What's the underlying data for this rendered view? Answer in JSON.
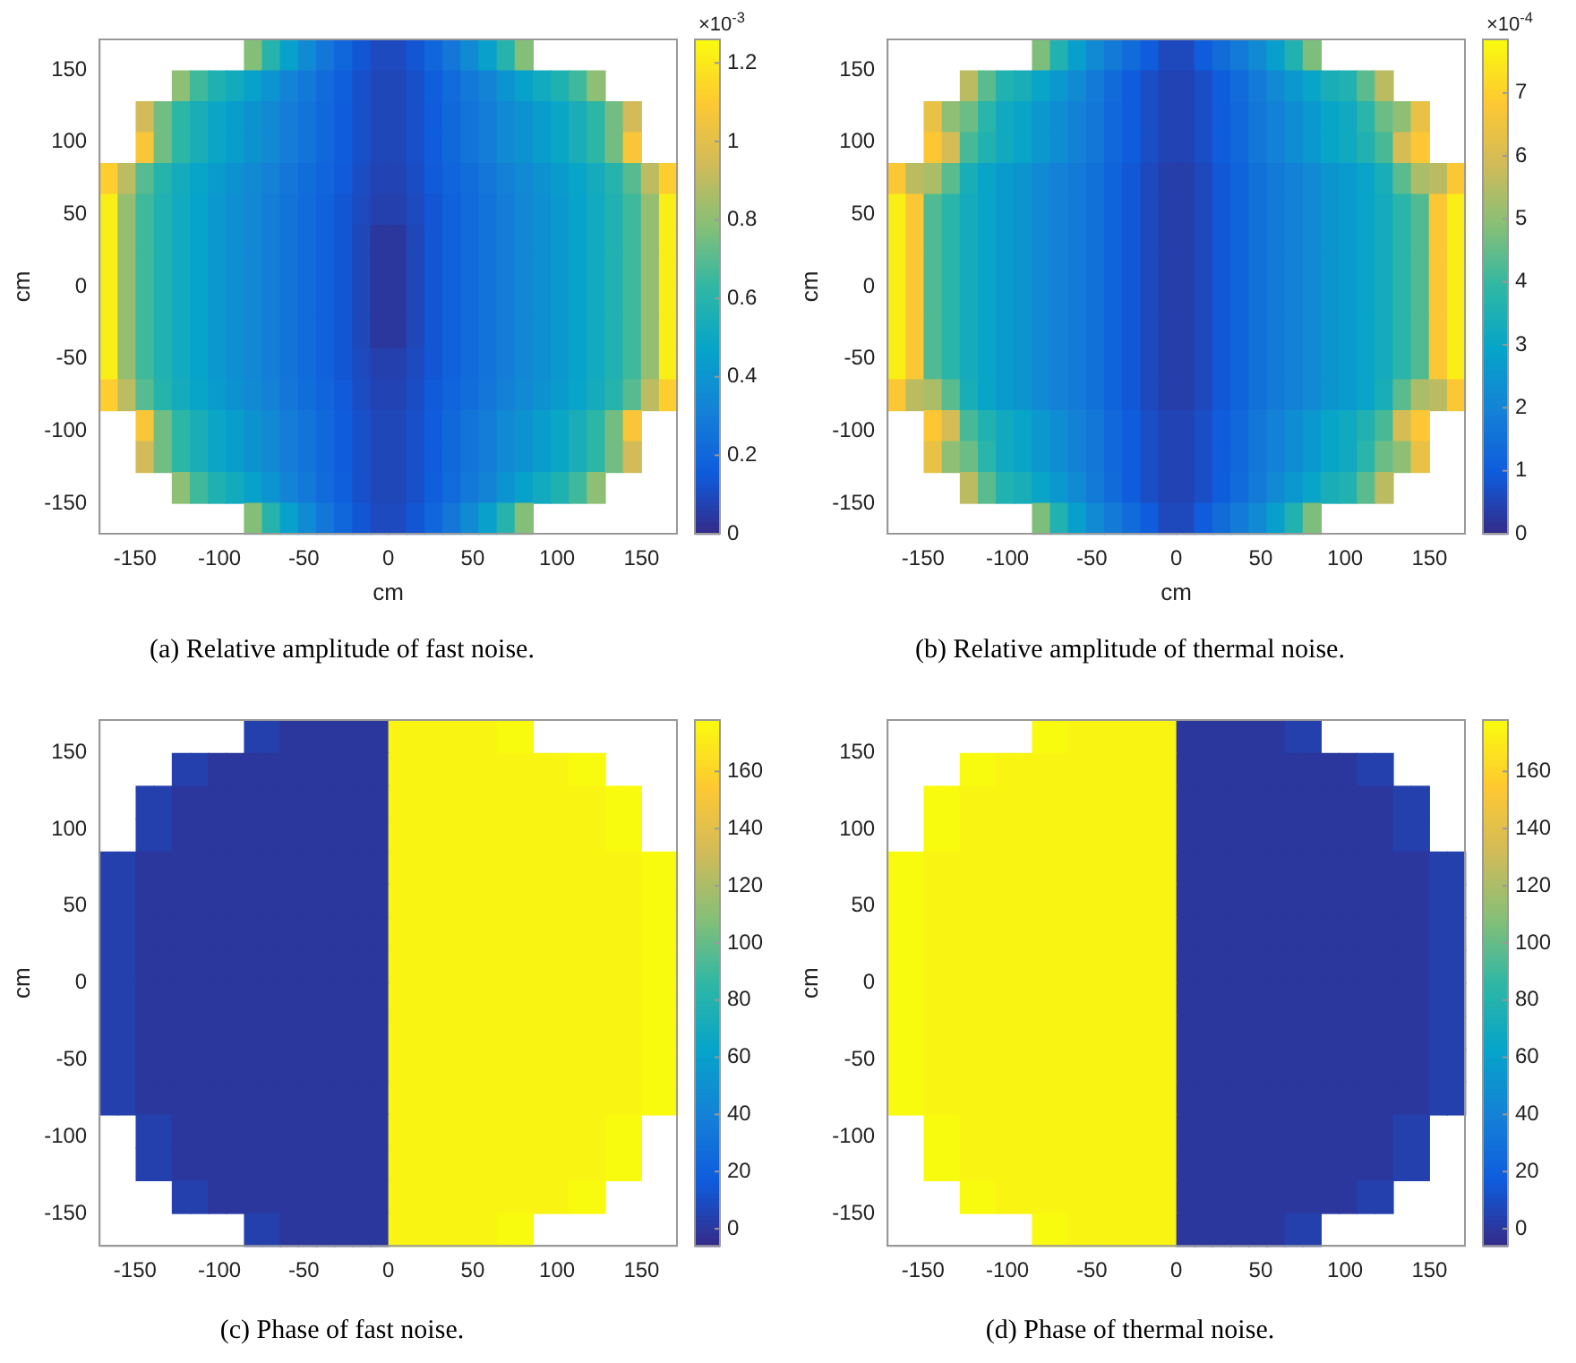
{
  "chart_data": [
    {
      "type": "heatmap",
      "title": "(a) Relative amplitude of fast noise.",
      "xlabel": "cm",
      "ylabel": "cm",
      "annotations": [
        "×10$^{-3}$"
      ],
      "x": [
        -165.7,
        -155.0,
        -144.3,
        -133.6,
        -122.9,
        -112.2,
        -101.5,
        -90.8,
        -80.2,
        -69.5,
        -58.8,
        -48.1,
        -37.4,
        -26.7,
        -16.0,
        -5.3,
        5.3,
        16.0,
        26.7,
        37.4,
        48.1,
        58.8,
        69.5,
        80.2,
        90.8,
        101.5,
        112.2,
        122.9,
        133.6,
        144.3,
        155.0,
        165.7
      ],
      "y": [
        160.3,
        138.9,
        117.6,
        96.2,
        74.8,
        53.4,
        32.1,
        10.7,
        -10.7,
        -32.1,
        -53.4,
        -74.8,
        -96.2,
        -117.6,
        -138.9,
        -160.3
      ],
      "xlim": [
        -171,
        171
      ],
      "ylim": [
        -171,
        171
      ],
      "xticks": [
        -150,
        -100,
        -50,
        0,
        50,
        100,
        150
      ],
      "yticks": [
        -150,
        -100,
        -50,
        0,
        50,
        100,
        150
      ],
      "clim": [
        0,
        1.26
      ],
      "cticks": [
        0,
        0.2,
        0.4,
        0.6,
        0.8,
        1,
        1.2
      ],
      "cells": [
        [
          null,
          null,
          null,
          null,
          null,
          null,
          null,
          null,
          0.78,
          0.6,
          0.46,
          0.36,
          0.27,
          0.2,
          0.14,
          0.1,
          0.1,
          0.14,
          0.2,
          0.27,
          0.36,
          0.46,
          0.6,
          0.78,
          null,
          null,
          null,
          null,
          null,
          null,
          null,
          null
        ],
        [
          null,
          null,
          null,
          null,
          0.8,
          0.66,
          0.57,
          0.52,
          0.46,
          0.4,
          0.33,
          0.28,
          0.22,
          0.17,
          0.12,
          0.09,
          0.09,
          0.12,
          0.17,
          0.22,
          0.28,
          0.33,
          0.4,
          0.46,
          0.52,
          0.57,
          0.66,
          0.8,
          null,
          null,
          null,
          null
        ],
        [
          null,
          null,
          0.95,
          0.75,
          0.62,
          0.55,
          0.49,
          0.44,
          0.39,
          0.35,
          0.3,
          0.26,
          0.21,
          0.16,
          0.12,
          0.09,
          0.09,
          0.12,
          0.16,
          0.21,
          0.26,
          0.3,
          0.35,
          0.39,
          0.44,
          0.49,
          0.55,
          0.62,
          0.75,
          0.95,
          null,
          null
        ],
        [
          null,
          null,
          1.08,
          0.75,
          0.62,
          0.55,
          0.49,
          0.44,
          0.39,
          0.35,
          0.3,
          0.26,
          0.21,
          0.16,
          0.12,
          0.09,
          0.09,
          0.12,
          0.16,
          0.21,
          0.26,
          0.3,
          0.35,
          0.39,
          0.44,
          0.49,
          0.55,
          0.62,
          0.75,
          1.08,
          null,
          null
        ],
        [
          1.12,
          0.9,
          0.7,
          0.6,
          0.53,
          0.48,
          0.43,
          0.39,
          0.35,
          0.31,
          0.27,
          0.23,
          0.19,
          0.15,
          0.11,
          0.08,
          0.08,
          0.11,
          0.15,
          0.19,
          0.23,
          0.27,
          0.31,
          0.35,
          0.39,
          0.43,
          0.48,
          0.53,
          0.6,
          0.7,
          0.9,
          1.12
        ],
        [
          1.22,
          0.82,
          0.66,
          0.58,
          0.52,
          0.47,
          0.42,
          0.38,
          0.34,
          0.3,
          0.26,
          0.22,
          0.18,
          0.14,
          0.1,
          0.07,
          0.07,
          0.1,
          0.14,
          0.18,
          0.22,
          0.26,
          0.3,
          0.34,
          0.38,
          0.42,
          0.47,
          0.52,
          0.58,
          0.66,
          0.82,
          1.22
        ],
        [
          1.22,
          0.82,
          0.66,
          0.58,
          0.52,
          0.47,
          0.42,
          0.38,
          0.34,
          0.3,
          0.26,
          0.22,
          0.18,
          0.14,
          0.09,
          0.04,
          0.04,
          0.09,
          0.14,
          0.18,
          0.22,
          0.26,
          0.3,
          0.34,
          0.38,
          0.42,
          0.47,
          0.52,
          0.58,
          0.66,
          0.82,
          1.22
        ],
        [
          1.22,
          0.82,
          0.66,
          0.58,
          0.52,
          0.47,
          0.42,
          0.38,
          0.34,
          0.3,
          0.26,
          0.22,
          0.18,
          0.14,
          0.09,
          0.04,
          0.04,
          0.09,
          0.14,
          0.18,
          0.22,
          0.26,
          0.3,
          0.34,
          0.38,
          0.42,
          0.47,
          0.52,
          0.58,
          0.66,
          0.82,
          1.22
        ],
        [
          1.22,
          0.82,
          0.66,
          0.58,
          0.52,
          0.47,
          0.42,
          0.38,
          0.34,
          0.3,
          0.26,
          0.22,
          0.18,
          0.14,
          0.09,
          0.04,
          0.04,
          0.09,
          0.14,
          0.18,
          0.22,
          0.26,
          0.3,
          0.34,
          0.38,
          0.42,
          0.47,
          0.52,
          0.58,
          0.66,
          0.82,
          1.22
        ],
        [
          1.22,
          0.82,
          0.66,
          0.58,
          0.52,
          0.47,
          0.42,
          0.38,
          0.34,
          0.3,
          0.26,
          0.22,
          0.18,
          0.14,
          0.09,
          0.04,
          0.04,
          0.09,
          0.14,
          0.18,
          0.22,
          0.26,
          0.3,
          0.34,
          0.38,
          0.42,
          0.47,
          0.52,
          0.58,
          0.66,
          0.82,
          1.22
        ],
        [
          1.22,
          0.82,
          0.66,
          0.58,
          0.52,
          0.47,
          0.42,
          0.38,
          0.34,
          0.3,
          0.26,
          0.22,
          0.18,
          0.14,
          0.1,
          0.07,
          0.07,
          0.1,
          0.14,
          0.18,
          0.22,
          0.26,
          0.3,
          0.34,
          0.38,
          0.42,
          0.47,
          0.52,
          0.58,
          0.66,
          0.82,
          1.22
        ],
        [
          1.12,
          0.9,
          0.7,
          0.6,
          0.53,
          0.48,
          0.43,
          0.39,
          0.35,
          0.31,
          0.27,
          0.23,
          0.19,
          0.15,
          0.11,
          0.08,
          0.08,
          0.11,
          0.15,
          0.19,
          0.23,
          0.27,
          0.31,
          0.35,
          0.39,
          0.43,
          0.48,
          0.53,
          0.6,
          0.7,
          0.9,
          1.12
        ],
        [
          null,
          null,
          1.08,
          0.75,
          0.62,
          0.55,
          0.49,
          0.44,
          0.39,
          0.35,
          0.3,
          0.26,
          0.21,
          0.16,
          0.12,
          0.09,
          0.09,
          0.12,
          0.16,
          0.21,
          0.26,
          0.3,
          0.35,
          0.39,
          0.44,
          0.49,
          0.55,
          0.62,
          0.75,
          1.08,
          null,
          null
        ],
        [
          null,
          null,
          0.95,
          0.75,
          0.62,
          0.55,
          0.49,
          0.44,
          0.39,
          0.35,
          0.3,
          0.26,
          0.21,
          0.16,
          0.12,
          0.09,
          0.09,
          0.12,
          0.16,
          0.21,
          0.26,
          0.3,
          0.35,
          0.39,
          0.44,
          0.49,
          0.55,
          0.62,
          0.75,
          0.95,
          null,
          null
        ],
        [
          null,
          null,
          null,
          null,
          0.8,
          0.66,
          0.57,
          0.52,
          0.46,
          0.4,
          0.33,
          0.28,
          0.22,
          0.17,
          0.12,
          0.09,
          0.09,
          0.12,
          0.17,
          0.22,
          0.28,
          0.33,
          0.4,
          0.46,
          0.52,
          0.57,
          0.66,
          0.8,
          null,
          null,
          null,
          null
        ],
        [
          null,
          null,
          null,
          null,
          null,
          null,
          null,
          null,
          0.78,
          0.6,
          0.46,
          0.36,
          0.27,
          0.2,
          0.14,
          0.1,
          0.1,
          0.14,
          0.2,
          0.27,
          0.36,
          0.46,
          0.6,
          0.78,
          null,
          null,
          null,
          null,
          null,
          null,
          null,
          null
        ]
      ]
    },
    {
      "type": "heatmap",
      "title": "(b) Relative amplitude of thermal noise.",
      "xlabel": "cm",
      "ylabel": "cm",
      "annotations": [
        "×10$^{-4}$"
      ],
      "x": [
        -165.7,
        -155.0,
        -144.3,
        -133.6,
        -122.9,
        -112.2,
        -101.5,
        -90.8,
        -80.2,
        -69.5,
        -58.8,
        -48.1,
        -37.4,
        -26.7,
        -16.0,
        -5.3,
        5.3,
        16.0,
        26.7,
        37.4,
        48.1,
        58.8,
        69.5,
        80.2,
        90.8,
        101.5,
        112.2,
        122.9,
        133.6,
        144.3,
        155.0,
        165.7
      ],
      "y": [
        160.3,
        138.9,
        117.6,
        96.2,
        74.8,
        53.4,
        32.1,
        10.7,
        -10.7,
        -32.1,
        -53.4,
        -74.8,
        -96.2,
        -117.6,
        -138.9,
        -160.3
      ],
      "xlim": [
        -171,
        171
      ],
      "ylim": [
        -171,
        171
      ],
      "xticks": [
        -150,
        -100,
        -50,
        0,
        50,
        100,
        150
      ],
      "yticks": [
        -150,
        -100,
        -50,
        0,
        50,
        100,
        150
      ],
      "clim": [
        0,
        7.85
      ],
      "cticks": [
        0,
        1,
        2,
        3,
        4,
        5,
        6,
        7
      ],
      "cells": [
        [
          null,
          null,
          null,
          null,
          null,
          null,
          null,
          null,
          4.8,
          3.6,
          2.8,
          2.2,
          1.8,
          1.4,
          1,
          0.6,
          0.6,
          1,
          1.4,
          1.8,
          2.2,
          2.8,
          3.6,
          4.8,
          null,
          null,
          null,
          null,
          null,
          null,
          null,
          null
        ],
        [
          null,
          null,
          null,
          null,
          5.6,
          4.4,
          3.6,
          3.4,
          3,
          2.6,
          2.2,
          1.8,
          1.4,
          1,
          0.7,
          0.5,
          0.5,
          0.7,
          1,
          1.4,
          1.8,
          2.2,
          2.6,
          3,
          3.4,
          3.6,
          4.4,
          5.6,
          null,
          null,
          null,
          null
        ],
        [
          null,
          null,
          6.4,
          5,
          4.6,
          3.8,
          3.2,
          3,
          2.6,
          2.3,
          2,
          1.7,
          1.3,
          1,
          0.7,
          0.5,
          0.5,
          0.7,
          1,
          1.3,
          1.7,
          2,
          2.3,
          2.6,
          3,
          3.2,
          3.8,
          4.6,
          5,
          6.4,
          null,
          null
        ],
        [
          null,
          null,
          6.8,
          6,
          4.2,
          3.6,
          3.2,
          3,
          2.6,
          2.3,
          2,
          1.7,
          1.3,
          1,
          0.7,
          0.5,
          0.5,
          0.7,
          1,
          1.3,
          1.7,
          2,
          2.3,
          2.6,
          3,
          3.2,
          3.6,
          4.2,
          6,
          6.8,
          null,
          null
        ],
        [
          6.8,
          5.6,
          5.4,
          4.4,
          3.4,
          3,
          2.7,
          2.5,
          2.2,
          2,
          1.8,
          1.5,
          1.2,
          0.9,
          0.6,
          0.4,
          0.4,
          0.6,
          0.9,
          1.2,
          1.5,
          1.8,
          2,
          2.2,
          2.5,
          2.7,
          3,
          3.4,
          4.4,
          5.4,
          5.6,
          6.8
        ],
        [
          7.6,
          6.8,
          4.3,
          3.8,
          3.3,
          3,
          2.7,
          2.5,
          2.2,
          2,
          1.8,
          1.5,
          1.2,
          0.9,
          0.6,
          0.4,
          0.4,
          0.6,
          0.9,
          1.2,
          1.5,
          1.8,
          2,
          2.2,
          2.5,
          2.7,
          3,
          3.3,
          3.8,
          4.3,
          6.8,
          7.6
        ],
        [
          7.6,
          6.8,
          4.3,
          3.8,
          3.3,
          3,
          2.7,
          2.5,
          2.2,
          2,
          1.8,
          1.5,
          1.2,
          0.9,
          0.6,
          0.4,
          0.4,
          0.6,
          0.9,
          1.2,
          1.5,
          1.8,
          2,
          2.2,
          2.5,
          2.7,
          3,
          3.3,
          3.8,
          4.3,
          6.8,
          7.6
        ],
        [
          7.6,
          6.8,
          4.3,
          3.8,
          3.3,
          3,
          2.7,
          2.5,
          2.2,
          2,
          1.8,
          1.5,
          1.2,
          0.9,
          0.6,
          0.4,
          0.4,
          0.6,
          0.9,
          1.2,
          1.5,
          1.8,
          2,
          2.2,
          2.5,
          2.7,
          3,
          3.3,
          3.8,
          4.3,
          6.8,
          7.6
        ],
        [
          7.6,
          6.8,
          4.3,
          3.8,
          3.3,
          3,
          2.7,
          2.5,
          2.2,
          2,
          1.8,
          1.5,
          1.2,
          0.9,
          0.6,
          0.4,
          0.4,
          0.6,
          0.9,
          1.2,
          1.5,
          1.8,
          2,
          2.2,
          2.5,
          2.7,
          3,
          3.3,
          3.8,
          4.3,
          6.8,
          7.6
        ],
        [
          7.6,
          6.8,
          4.3,
          3.8,
          3.3,
          3,
          2.7,
          2.5,
          2.2,
          2,
          1.8,
          1.5,
          1.2,
          0.9,
          0.6,
          0.4,
          0.4,
          0.6,
          0.9,
          1.2,
          1.5,
          1.8,
          2,
          2.2,
          2.5,
          2.7,
          3,
          3.3,
          3.8,
          4.3,
          6.8,
          7.6
        ],
        [
          7.6,
          6.8,
          4.3,
          3.8,
          3.3,
          3,
          2.7,
          2.5,
          2.2,
          2,
          1.8,
          1.5,
          1.2,
          0.9,
          0.6,
          0.4,
          0.4,
          0.6,
          0.9,
          1.2,
          1.5,
          1.8,
          2,
          2.2,
          2.5,
          2.7,
          3,
          3.3,
          3.8,
          4.3,
          6.8,
          7.6
        ],
        [
          6.8,
          5.6,
          5.4,
          4.4,
          3.4,
          3,
          2.7,
          2.5,
          2.2,
          2,
          1.8,
          1.5,
          1.2,
          0.9,
          0.6,
          0.4,
          0.4,
          0.6,
          0.9,
          1.2,
          1.5,
          1.8,
          2,
          2.2,
          2.5,
          2.7,
          3,
          3.4,
          4.4,
          5.4,
          5.6,
          6.8
        ],
        [
          null,
          null,
          6.8,
          6,
          4.2,
          3.6,
          3.2,
          3,
          2.6,
          2.3,
          2,
          1.7,
          1.3,
          1,
          0.7,
          0.5,
          0.5,
          0.7,
          1,
          1.3,
          1.7,
          2,
          2.3,
          2.6,
          3,
          3.2,
          3.6,
          4.2,
          6,
          6.8,
          null,
          null
        ],
        [
          null,
          null,
          6.4,
          5,
          4.6,
          3.8,
          3.2,
          3,
          2.6,
          2.3,
          2,
          1.7,
          1.3,
          1,
          0.7,
          0.5,
          0.5,
          0.7,
          1,
          1.3,
          1.7,
          2,
          2.3,
          2.6,
          3,
          3.2,
          3.8,
          4.6,
          5,
          6.4,
          null,
          null
        ],
        [
          null,
          null,
          null,
          null,
          5.6,
          4.4,
          3.6,
          3.4,
          3,
          2.6,
          2.2,
          1.8,
          1.4,
          1,
          0.7,
          0.5,
          0.5,
          0.7,
          1,
          1.4,
          1.8,
          2.2,
          2.6,
          3,
          3.4,
          3.6,
          4.4,
          5.6,
          null,
          null,
          null,
          null
        ],
        [
          null,
          null,
          null,
          null,
          null,
          null,
          null,
          null,
          4.8,
          3.6,
          2.8,
          2.2,
          1.8,
          1.4,
          1,
          0.6,
          0.6,
          1,
          1.4,
          1.8,
          2.2,
          2.8,
          3.6,
          4.8,
          null,
          null,
          null,
          null,
          null,
          null,
          null,
          null
        ]
      ]
    },
    {
      "type": "heatmap",
      "title": "(c) Phase of fast noise.",
      "ylabel": "cm",
      "x": [
        -165.7,
        -155.0,
        -144.3,
        -133.6,
        -122.9,
        -112.2,
        -101.5,
        -90.8,
        -80.2,
        -69.5,
        -58.8,
        -48.1,
        -37.4,
        -26.7,
        -16.0,
        -5.3,
        5.3,
        16.0,
        26.7,
        37.4,
        48.1,
        58.8,
        69.5,
        80.2,
        90.8,
        101.5,
        112.2,
        122.9,
        133.6,
        144.3,
        155.0,
        165.7
      ],
      "y": [
        160.3,
        138.9,
        117.6,
        96.2,
        74.8,
        53.4,
        32.1,
        10.7,
        -10.7,
        -32.1,
        -53.4,
        -74.8,
        -96.2,
        -117.6,
        -138.9,
        -160.3
      ],
      "xlim": [
        -171,
        171
      ],
      "ylim": [
        -171,
        171
      ],
      "xticks": [
        -150,
        -100,
        -50,
        0,
        50,
        100,
        150
      ],
      "yticks": [
        -150,
        -100,
        -50,
        0,
        50,
        100,
        150
      ],
      "clim": [
        -6,
        178
      ],
      "cticks": [
        0,
        20,
        40,
        60,
        80,
        100,
        120,
        140,
        160
      ],
      "cells": [
        [
          null,
          null,
          null,
          null,
          null,
          null,
          null,
          null,
          4,
          4,
          0,
          0,
          0,
          0,
          0,
          0,
          175,
          175,
          175,
          175,
          175,
          175,
          178,
          178,
          null,
          null,
          null,
          null,
          null,
          null,
          null,
          null
        ],
        [
          null,
          null,
          null,
          null,
          4,
          4,
          0,
          0,
          0,
          0,
          0,
          0,
          0,
          0,
          0,
          0,
          175,
          175,
          175,
          175,
          175,
          175,
          175,
          175,
          175,
          175,
          178,
          178,
          null,
          null,
          null,
          null
        ],
        [
          null,
          null,
          4,
          4,
          0,
          0,
          0,
          0,
          0,
          0,
          0,
          0,
          0,
          0,
          0,
          0,
          175,
          175,
          175,
          175,
          175,
          175,
          175,
          175,
          175,
          175,
          175,
          175,
          178,
          178,
          null,
          null
        ],
        [
          null,
          null,
          4,
          4,
          0,
          0,
          0,
          0,
          0,
          0,
          0,
          0,
          0,
          0,
          0,
          0,
          175,
          175,
          175,
          175,
          175,
          175,
          175,
          175,
          175,
          175,
          175,
          175,
          178,
          178,
          null,
          null
        ],
        [
          4,
          4,
          0,
          0,
          0,
          0,
          0,
          0,
          0,
          0,
          0,
          0,
          0,
          0,
          0,
          0,
          175,
          175,
          175,
          175,
          175,
          175,
          175,
          175,
          175,
          175,
          175,
          175,
          175,
          175,
          178,
          178
        ],
        [
          4,
          4,
          0,
          0,
          0,
          0,
          0,
          0,
          0,
          0,
          0,
          0,
          0,
          0,
          0,
          0,
          175,
          175,
          175,
          175,
          175,
          175,
          175,
          175,
          175,
          175,
          175,
          175,
          175,
          175,
          178,
          178
        ],
        [
          4,
          4,
          0,
          0,
          0,
          0,
          0,
          0,
          0,
          0,
          0,
          0,
          0,
          0,
          0,
          0,
          175,
          175,
          175,
          175,
          175,
          175,
          175,
          175,
          175,
          175,
          175,
          175,
          175,
          175,
          178,
          178
        ],
        [
          4,
          4,
          0,
          0,
          0,
          0,
          0,
          0,
          0,
          0,
          0,
          0,
          0,
          0,
          0,
          0,
          175,
          175,
          175,
          175,
          175,
          175,
          175,
          175,
          175,
          175,
          175,
          175,
          175,
          175,
          178,
          178
        ],
        [
          4,
          4,
          0,
          0,
          0,
          0,
          0,
          0,
          0,
          0,
          0,
          0,
          0,
          0,
          0,
          0,
          175,
          175,
          175,
          175,
          175,
          175,
          175,
          175,
          175,
          175,
          175,
          175,
          175,
          175,
          178,
          178
        ],
        [
          4,
          4,
          0,
          0,
          0,
          0,
          0,
          0,
          0,
          0,
          0,
          0,
          0,
          0,
          0,
          0,
          175,
          175,
          175,
          175,
          175,
          175,
          175,
          175,
          175,
          175,
          175,
          175,
          175,
          175,
          178,
          178
        ],
        [
          4,
          4,
          0,
          0,
          0,
          0,
          0,
          0,
          0,
          0,
          0,
          0,
          0,
          0,
          0,
          0,
          175,
          175,
          175,
          175,
          175,
          175,
          175,
          175,
          175,
          175,
          175,
          175,
          175,
          175,
          178,
          178
        ],
        [
          4,
          4,
          0,
          0,
          0,
          0,
          0,
          0,
          0,
          0,
          0,
          0,
          0,
          0,
          0,
          0,
          175,
          175,
          175,
          175,
          175,
          175,
          175,
          175,
          175,
          175,
          175,
          175,
          175,
          175,
          178,
          178
        ],
        [
          null,
          null,
          4,
          4,
          0,
          0,
          0,
          0,
          0,
          0,
          0,
          0,
          0,
          0,
          0,
          0,
          175,
          175,
          175,
          175,
          175,
          175,
          175,
          175,
          175,
          175,
          175,
          175,
          178,
          178,
          null,
          null
        ],
        [
          null,
          null,
          4,
          4,
          0,
          0,
          0,
          0,
          0,
          0,
          0,
          0,
          0,
          0,
          0,
          0,
          175,
          175,
          175,
          175,
          175,
          175,
          175,
          175,
          175,
          175,
          175,
          175,
          178,
          178,
          null,
          null
        ],
        [
          null,
          null,
          null,
          null,
          4,
          4,
          0,
          0,
          0,
          0,
          0,
          0,
          0,
          0,
          0,
          0,
          175,
          175,
          175,
          175,
          175,
          175,
          175,
          175,
          175,
          175,
          178,
          178,
          null,
          null,
          null,
          null
        ],
        [
          null,
          null,
          null,
          null,
          null,
          null,
          null,
          null,
          4,
          4,
          0,
          0,
          0,
          0,
          0,
          0,
          175,
          175,
          175,
          175,
          175,
          175,
          178,
          178,
          null,
          null,
          null,
          null,
          null,
          null,
          null,
          null
        ]
      ]
    },
    {
      "type": "heatmap",
      "title": "(d) Phase of thermal noise.",
      "ylabel": "cm",
      "x": [
        -165.7,
        -155.0,
        -144.3,
        -133.6,
        -122.9,
        -112.2,
        -101.5,
        -90.8,
        -80.2,
        -69.5,
        -58.8,
        -48.1,
        -37.4,
        -26.7,
        -16.0,
        -5.3,
        5.3,
        16.0,
        26.7,
        37.4,
        48.1,
        58.8,
        69.5,
        80.2,
        90.8,
        101.5,
        112.2,
        122.9,
        133.6,
        144.3,
        155.0,
        165.7
      ],
      "y": [
        160.3,
        138.9,
        117.6,
        96.2,
        74.8,
        53.4,
        32.1,
        10.7,
        -10.7,
        -32.1,
        -53.4,
        -74.8,
        -96.2,
        -117.6,
        -138.9,
        -160.3
      ],
      "xlim": [
        -171,
        171
      ],
      "ylim": [
        -171,
        171
      ],
      "xticks": [
        -150,
        -100,
        -50,
        0,
        50,
        100,
        150
      ],
      "yticks": [
        -150,
        -100,
        -50,
        0,
        50,
        100,
        150
      ],
      "clim": [
        -6,
        178
      ],
      "cticks": [
        0,
        20,
        40,
        60,
        80,
        100,
        120,
        140,
        160
      ],
      "cells": [
        [
          null,
          null,
          null,
          null,
          null,
          null,
          null,
          null,
          178,
          178,
          175,
          175,
          175,
          175,
          175,
          175,
          0,
          0,
          0,
          0,
          0,
          0,
          4,
          4,
          null,
          null,
          null,
          null,
          null,
          null,
          null,
          null
        ],
        [
          null,
          null,
          null,
          null,
          178,
          178,
          175,
          175,
          175,
          175,
          175,
          175,
          175,
          175,
          175,
          175,
          0,
          0,
          0,
          0,
          0,
          0,
          0,
          0,
          0,
          0,
          4,
          4,
          null,
          null,
          null,
          null
        ],
        [
          null,
          null,
          178,
          178,
          175,
          175,
          175,
          175,
          175,
          175,
          175,
          175,
          175,
          175,
          175,
          175,
          0,
          0,
          0,
          0,
          0,
          0,
          0,
          0,
          0,
          0,
          0,
          0,
          4,
          4,
          null,
          null
        ],
        [
          null,
          null,
          178,
          178,
          175,
          175,
          175,
          175,
          175,
          175,
          175,
          175,
          175,
          175,
          175,
          175,
          0,
          0,
          0,
          0,
          0,
          0,
          0,
          0,
          0,
          0,
          0,
          0,
          4,
          4,
          null,
          null
        ],
        [
          178,
          178,
          175,
          175,
          175,
          175,
          175,
          175,
          175,
          175,
          175,
          175,
          175,
          175,
          175,
          175,
          0,
          0,
          0,
          0,
          0,
          0,
          0,
          0,
          0,
          0,
          0,
          0,
          0,
          0,
          4,
          4
        ],
        [
          178,
          178,
          175,
          175,
          175,
          175,
          175,
          175,
          175,
          175,
          175,
          175,
          175,
          175,
          175,
          175,
          0,
          0,
          0,
          0,
          0,
          0,
          0,
          0,
          0,
          0,
          0,
          0,
          0,
          0,
          4,
          4
        ],
        [
          178,
          178,
          175,
          175,
          175,
          175,
          175,
          175,
          175,
          175,
          175,
          175,
          175,
          175,
          175,
          175,
          0,
          0,
          0,
          0,
          0,
          0,
          0,
          0,
          0,
          0,
          0,
          0,
          0,
          0,
          4,
          4
        ],
        [
          178,
          178,
          175,
          175,
          175,
          175,
          175,
          175,
          175,
          175,
          175,
          175,
          175,
          175,
          175,
          175,
          0,
          0,
          0,
          0,
          0,
          0,
          0,
          0,
          0,
          0,
          0,
          0,
          0,
          0,
          4,
          4
        ],
        [
          178,
          178,
          175,
          175,
          175,
          175,
          175,
          175,
          175,
          175,
          175,
          175,
          175,
          175,
          175,
          175,
          0,
          0,
          0,
          0,
          0,
          0,
          0,
          0,
          0,
          0,
          0,
          0,
          0,
          0,
          4,
          4
        ],
        [
          178,
          178,
          175,
          175,
          175,
          175,
          175,
          175,
          175,
          175,
          175,
          175,
          175,
          175,
          175,
          175,
          0,
          0,
          0,
          0,
          0,
          0,
          0,
          0,
          0,
          0,
          0,
          0,
          0,
          0,
          4,
          4
        ],
        [
          178,
          178,
          175,
          175,
          175,
          175,
          175,
          175,
          175,
          175,
          175,
          175,
          175,
          175,
          175,
          175,
          0,
          0,
          0,
          0,
          0,
          0,
          0,
          0,
          0,
          0,
          0,
          0,
          0,
          0,
          4,
          4
        ],
        [
          178,
          178,
          175,
          175,
          175,
          175,
          175,
          175,
          175,
          175,
          175,
          175,
          175,
          175,
          175,
          175,
          0,
          0,
          0,
          0,
          0,
          0,
          0,
          0,
          0,
          0,
          0,
          0,
          0,
          0,
          4,
          4
        ],
        [
          null,
          null,
          178,
          178,
          175,
          175,
          175,
          175,
          175,
          175,
          175,
          175,
          175,
          175,
          175,
          175,
          0,
          0,
          0,
          0,
          0,
          0,
          0,
          0,
          0,
          0,
          0,
          0,
          4,
          4,
          null,
          null
        ],
        [
          null,
          null,
          178,
          178,
          175,
          175,
          175,
          175,
          175,
          175,
          175,
          175,
          175,
          175,
          175,
          175,
          0,
          0,
          0,
          0,
          0,
          0,
          0,
          0,
          0,
          0,
          0,
          0,
          4,
          4,
          null,
          null
        ],
        [
          null,
          null,
          null,
          null,
          178,
          178,
          175,
          175,
          175,
          175,
          175,
          175,
          175,
          175,
          175,
          175,
          0,
          0,
          0,
          0,
          0,
          0,
          0,
          0,
          0,
          0,
          4,
          4,
          null,
          null,
          null,
          null
        ],
        [
          null,
          null,
          null,
          null,
          null,
          null,
          null,
          null,
          178,
          178,
          175,
          175,
          175,
          175,
          175,
          175,
          0,
          0,
          0,
          0,
          0,
          0,
          4,
          4,
          null,
          null,
          null,
          null,
          null,
          null,
          null,
          null
        ]
      ]
    }
  ]
}
